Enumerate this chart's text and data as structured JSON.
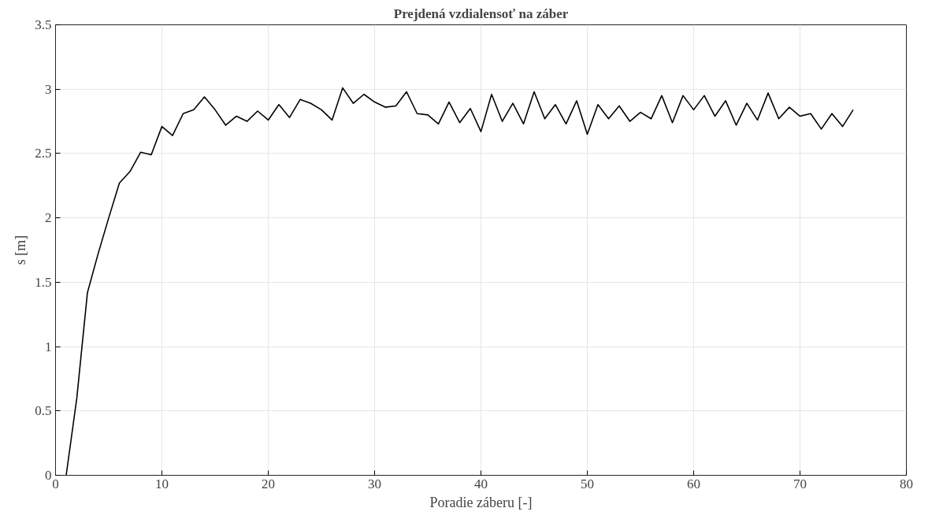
{
  "chart_data": {
    "type": "line",
    "title": "Prejdená vzdialensoť na záber",
    "xlabel": "Poradie záberu [-]",
    "ylabel": "s [m]",
    "x": [
      1,
      2,
      3,
      4,
      5,
      6,
      7,
      8,
      9,
      10,
      11,
      12,
      13,
      14,
      15,
      16,
      17,
      18,
      19,
      20,
      21,
      22,
      23,
      24,
      25,
      26,
      27,
      28,
      29,
      30,
      31,
      32,
      33,
      34,
      35,
      36,
      37,
      38,
      39,
      40,
      41,
      42,
      43,
      44,
      45,
      46,
      47,
      48,
      49,
      50,
      51,
      52,
      53,
      54,
      55,
      56,
      57,
      58,
      59,
      60,
      61,
      62,
      63,
      64,
      65,
      66,
      67,
      68,
      69,
      70,
      71,
      72,
      73,
      74,
      75
    ],
    "series": [
      {
        "color": "#000000",
        "values": [
          0,
          0.6,
          1.42,
          1.72,
          2.0,
          2.27,
          2.36,
          2.51,
          2.49,
          2.71,
          2.64,
          2.81,
          2.84,
          2.94,
          2.84,
          2.72,
          2.79,
          2.75,
          2.83,
          2.76,
          2.88,
          2.78,
          2.92,
          2.89,
          2.84,
          2.76,
          3.01,
          2.89,
          2.96,
          2.9,
          2.86,
          2.87,
          2.98,
          2.81,
          2.8,
          2.73,
          2.9,
          2.74,
          2.85,
          2.67,
          2.96,
          2.75,
          2.89,
          2.73,
          2.98,
          2.77,
          2.88,
          2.73,
          2.91,
          2.65,
          2.88,
          2.77,
          2.87,
          2.75,
          2.82,
          2.77,
          2.95,
          2.74,
          2.95,
          2.84,
          2.95,
          2.79,
          2.91,
          2.72,
          2.89,
          2.76,
          2.97,
          2.77,
          2.86,
          2.79,
          2.81,
          2.69,
          2.81,
          2.71,
          2.84
        ]
      }
    ],
    "xlim": [
      0,
      80
    ],
    "xticks": [
      0,
      10,
      20,
      30,
      40,
      50,
      60,
      70,
      80
    ],
    "ylim": [
      0,
      3.5
    ],
    "yticks": [
      0,
      0.5,
      1,
      1.5,
      2,
      2.5,
      3,
      3.5
    ],
    "grid": true,
    "marker": "none",
    "line_style": "solid"
  }
}
